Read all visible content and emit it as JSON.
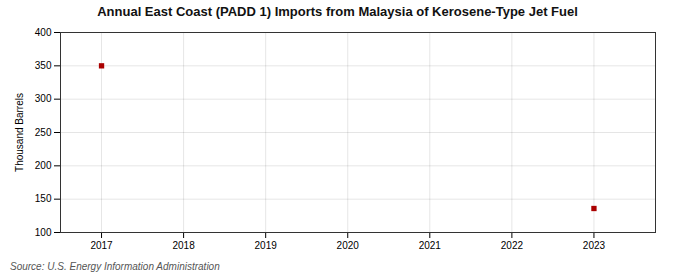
{
  "chart_data": {
    "type": "scatter",
    "title": "Annual East Coast (PADD 1) Imports from Malaysia of Kerosene-Type Jet Fuel",
    "ylabel": "Thousand Barrels",
    "source": "Source: U.S. Energy Information Administration",
    "x": [
      2017,
      2023
    ],
    "values": [
      350,
      136
    ],
    "color": "#aa0000",
    "marker": "square",
    "xlim": [
      2016.5,
      2023.75
    ],
    "ylim": [
      100,
      400
    ],
    "xticks": [
      2017,
      2018,
      2019,
      2020,
      2021,
      2022,
      2023
    ],
    "yticks": [
      100,
      150,
      200,
      250,
      300,
      350,
      400
    ],
    "grid": true
  }
}
